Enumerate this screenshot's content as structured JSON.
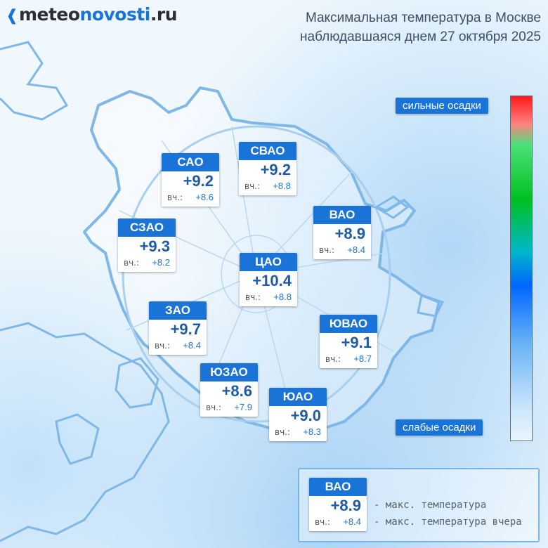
{
  "header": {
    "logo_dark": "meteo",
    "logo_blue": "novosti",
    "logo_tail": ".ru",
    "title_line1": "Максимальная температура в Москве",
    "title_line2": "наблюдавшаяся днем 27 октября 2025"
  },
  "districts": [
    {
      "name": "САО",
      "temp": "+9.2",
      "yest_label": "вч.:",
      "yest": "+8.6"
    },
    {
      "name": "СВАО",
      "temp": "+9.2",
      "yest_label": "вч.:",
      "yest": "+8.8"
    },
    {
      "name": "ВАО",
      "temp": "+8.9",
      "yest_label": "вч.:",
      "yest": "+8.4"
    },
    {
      "name": "СЗАО",
      "temp": "+9.3",
      "yest_label": "вч.:",
      "yest": "+8.2"
    },
    {
      "name": "ЦАО",
      "temp": "+10.4",
      "yest_label": "вч.:",
      "yest": "+8.8"
    },
    {
      "name": "ЗАО",
      "temp": "+9.7",
      "yest_label": "вч.:",
      "yest": "+8.4"
    },
    {
      "name": "ЮВАО",
      "temp": "+9.1",
      "yest_label": "вч.:",
      "yest": "+8.7"
    },
    {
      "name": "ЮЗАО",
      "temp": "+8.6",
      "yest_label": "вч.:",
      "yest": "+7.9"
    },
    {
      "name": "ЮАО",
      "temp": "+9.0",
      "yest_label": "вч.:",
      "yest": "+8.3"
    }
  ],
  "scale": {
    "top_label": "сильные осадки",
    "bottom_label": "слабые осадки"
  },
  "legend": {
    "name": "ВАО",
    "temp": "+8.9",
    "yest_label": "вч.:",
    "yest": "+8.4",
    "desc_temp": "- макс. температура",
    "desc_yest": "- макс. температура вчера"
  },
  "colors": {
    "accent": "#1a73d6",
    "temp_text": "#1f5aa5",
    "boundary": "#7fb8e8"
  }
}
